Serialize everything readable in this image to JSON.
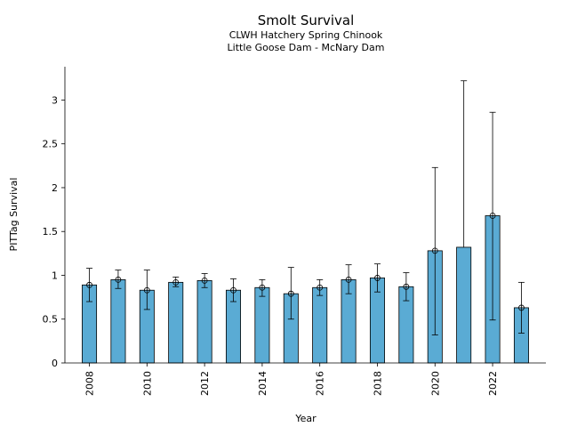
{
  "chart_data": {
    "type": "bar",
    "title": "Smolt Survival",
    "subtitle_lines": [
      "CLWH Hatchery Spring Chinook",
      "Little Goose Dam - McNary Dam"
    ],
    "xlabel": "Year",
    "ylabel": "PITTag Survival",
    "ylim": [
      0,
      3.38
    ],
    "yticks": [
      0,
      0.5,
      1,
      1.5,
      2,
      2.5,
      3
    ],
    "ytick_labels": [
      "0",
      "0.5",
      "1",
      "1.5",
      "2",
      "2.5",
      "3"
    ],
    "xlim": [
      2007.15,
      2023.85
    ],
    "xticks": [
      2008,
      2010,
      2012,
      2014,
      2016,
      2018,
      2020,
      2022
    ],
    "xtick_labels": [
      "2008",
      "2010",
      "2012",
      "2014",
      "2016",
      "2018",
      "2020",
      "2022"
    ],
    "bar_width_years": 0.5,
    "grid": false,
    "bar_color": "#5aabd4",
    "series": [
      {
        "x": [
          2008,
          2009,
          2010,
          2011,
          2012,
          2013,
          2014,
          2015,
          2016,
          2017,
          2018,
          2019,
          2020,
          2021,
          2022,
          2023
        ],
        "values": [
          0.89,
          0.95,
          0.83,
          0.92,
          0.94,
          0.83,
          0.86,
          0.79,
          0.86,
          0.95,
          0.97,
          0.87,
          1.28,
          1.32,
          1.68,
          0.63
        ],
        "error_low": [
          0.7,
          0.85,
          0.61,
          0.87,
          0.86,
          0.7,
          0.76,
          0.5,
          0.77,
          0.79,
          0.81,
          0.71,
          0.32,
          null,
          0.49,
          0.34
        ],
        "error_high": [
          1.08,
          1.06,
          1.06,
          0.98,
          1.02,
          0.96,
          0.95,
          1.09,
          0.95,
          1.12,
          1.13,
          1.03,
          2.23,
          3.22,
          2.86,
          0.92
        ],
        "point_marker": [
          true,
          true,
          true,
          true,
          true,
          true,
          true,
          true,
          true,
          true,
          true,
          true,
          true,
          false,
          true,
          true
        ]
      }
    ]
  }
}
